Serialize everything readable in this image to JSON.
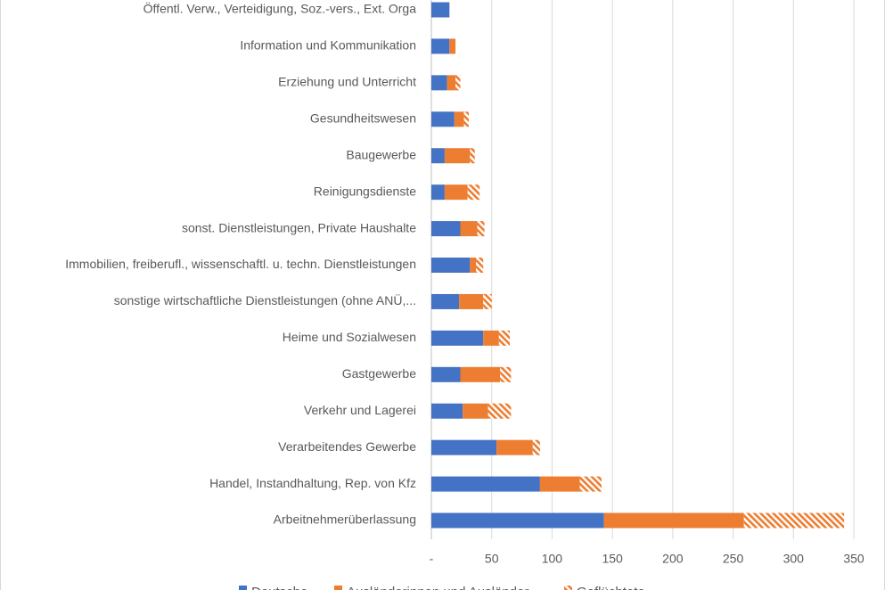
{
  "chart_data": {
    "type": "stacked-bar-horizontal",
    "categories": [
      "Öffentl. Verw., Verteidigung, Soz.-vers., Ext. Orga",
      "Information und Kommunikation",
      "Erziehung und Unterricht",
      "Gesundheitswesen",
      "Baugewerbe",
      "Reinigungsdienste",
      "sonst. Dienstleistungen, Private Haushalte",
      "Immobilien, freiberufl., wissenschaftl. u. techn. Dienstleistungen",
      "sonstige wirtschaftliche Dienstleistungen (ohne ANÜ,...",
      "Heime und Sozialwesen",
      "Gastgewerbe",
      "Verkehr und Lagerei",
      "Verarbeitendes Gewerbe",
      "Handel, Instandhaltung, Rep. von Kfz",
      "Arbeitnehmerüberlassung"
    ],
    "series": [
      {
        "name": "Deutsche",
        "color": "#4472c4",
        "values": [
          15,
          15,
          13,
          19,
          11,
          11,
          24,
          32,
          23,
          43,
          24,
          26,
          54,
          90,
          143
        ]
      },
      {
        "name": "Ausländerinnen und Ausländer",
        "color": "#ed7d31",
        "values": [
          0,
          5,
          7,
          8,
          21,
          19,
          14,
          5,
          20,
          13,
          33,
          21,
          30,
          33,
          116
        ]
      },
      {
        "name": "Geflüchtete",
        "color": "#ed7d31",
        "hatch": true,
        "values": [
          0,
          0,
          4,
          4,
          4,
          10,
          6,
          6,
          7,
          9,
          9,
          19,
          6,
          18,
          83
        ]
      }
    ],
    "xlim": [
      0,
      350
    ],
    "xticks": [
      {
        "value": 0,
        "label": "-"
      },
      50,
      100,
      150,
      200,
      250,
      300,
      350
    ],
    "grid": true
  }
}
